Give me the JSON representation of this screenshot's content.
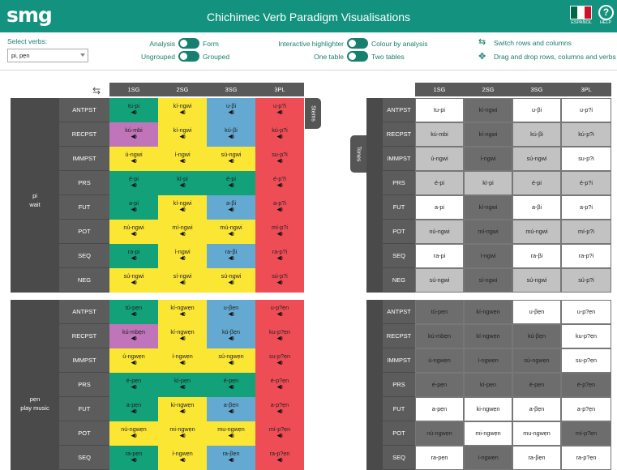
{
  "header": {
    "logo": "smg",
    "title": "Chichimec Verb Paradigm Visualisations",
    "language_label": "ESPAÑOL",
    "help_label": "HELP",
    "flag_colors": [
      "#006847",
      "#ffffff",
      "#ce1126"
    ]
  },
  "controls": {
    "select_label": "Select verbs:",
    "selected_verbs": "pi, pẹn",
    "analysis_label": "Analysis",
    "form_label": "Form",
    "ungrouped_label": "Ungrouped",
    "grouped_label": "Grouped",
    "highlighter_label": "Interactive highlighter",
    "colour_label": "Colour by analysis",
    "one_table_label": "One table",
    "two_tables_label": "Two tables",
    "switch_label": "Switch rows and columns",
    "drag_label": "Drag and drop rows, columns and verbs",
    "switch_icon": "swap-arrows-icon",
    "drag_icon": "move-arrows-icon",
    "toggle_color": "#16806f"
  },
  "tabs": {
    "stems": "Stems",
    "tones": "Tones"
  },
  "columns": [
    "1SG",
    "2SG",
    "3SG",
    "3PL"
  ],
  "verbs": [
    {
      "stem": "pi",
      "gloss": "wait",
      "rows": [
        {
          "label": "ANTPST",
          "forms": [
            "tu-pi",
            "kí-ngwi",
            "u-βi",
            "u-p?i"
          ]
        },
        {
          "label": "RECPST",
          "forms": [
            "kú-mbi",
            "kí-ngwi",
            "kú-βi",
            "kú-p?i"
          ]
        },
        {
          "label": "IMMPST",
          "forms": [
            "ú-ngwi",
            "í-ngwi",
            "sú-ngwi",
            "su-p?i"
          ]
        },
        {
          "label": "PRS",
          "forms": [
            "é-pi",
            "kí-pi",
            "é-pi",
            "é-p?i"
          ]
        },
        {
          "label": "FUT",
          "forms": [
            "a-pi",
            "kí-ngwi",
            "a-βi",
            "a-p?i"
          ]
        },
        {
          "label": "POT",
          "forms": [
            "nú-ngwi",
            "mí-ngwi",
            "mú-ngwi",
            "mí-p?i"
          ]
        },
        {
          "label": "SEQ",
          "forms": [
            "ra-pi",
            "í-ngwi",
            "ra-βi",
            "ra-p?i"
          ]
        },
        {
          "label": "NEG",
          "forms": [
            "sú-ngwi",
            "sí-ngwi",
            "sú-ngwi",
            "sú-p?i"
          ]
        }
      ]
    },
    {
      "stem": "pẹn",
      "gloss": "play music",
      "rows": [
        {
          "label": "ANTPST",
          "forms": [
            "tú-pẹn",
            "kí-ngwẹn",
            "u-βẹn",
            "u-p?ẹn"
          ]
        },
        {
          "label": "RECPST",
          "forms": [
            "kú-mbẹn",
            "kí-ngwẹn",
            "kú-βẹn",
            "ku-p?ẹn"
          ]
        },
        {
          "label": "IMMPST",
          "forms": [
            "ú-ngwẹn",
            "í-ngwẹn",
            "sú-ngwẹn",
            "su-p?ẹn"
          ]
        },
        {
          "label": "PRS",
          "forms": [
            "é-pẹn",
            "kí-pẹn",
            "é-pẹn",
            "é-p?ẹn"
          ]
        },
        {
          "label": "FUT",
          "forms": [
            "a-pẹn",
            "ki-ngwẹn",
            "a-βẹn",
            "a-p?ẹn"
          ]
        },
        {
          "label": "POT",
          "forms": [
            "nú-ngwẹn",
            "mi-ngwẹn",
            "mu-ngwẹn",
            "mí-p?ẹn"
          ]
        },
        {
          "label": "SEQ",
          "forms": [
            "ra-pẹn",
            "í-ngwẹn",
            "ra-βẹn",
            "ra-p?ẹn"
          ]
        }
      ]
    }
  ],
  "left_colors": [
    [
      "green",
      "yellow",
      "blue",
      "red"
    ],
    [
      "purple",
      "yellow",
      "blue",
      "red"
    ],
    [
      "yellow",
      "yellow",
      "yellow",
      "red"
    ],
    [
      "green",
      "green",
      "green",
      "red"
    ],
    [
      "green",
      "yellow",
      "blue",
      "red"
    ],
    [
      "yellow",
      "yellow",
      "yellow",
      "red"
    ],
    [
      "green",
      "yellow",
      "blue",
      "red"
    ],
    [
      "yellow",
      "yellow",
      "yellow",
      "red"
    ],
    [
      "green",
      "yellow",
      "blue",
      "red"
    ],
    [
      "purple",
      "yellow",
      "blue",
      "red"
    ],
    [
      "yellow",
      "yellow",
      "yellow",
      "red"
    ],
    [
      "green",
      "green",
      "green",
      "red"
    ],
    [
      "green",
      "yellow",
      "blue",
      "red"
    ],
    [
      "yellow",
      "yellow",
      "yellow",
      "red"
    ],
    [
      "green",
      "yellow",
      "blue",
      "red"
    ]
  ],
  "right_shades": [
    [
      "white",
      "dark",
      "white",
      "white"
    ],
    [
      "light",
      "dark",
      "light",
      "light"
    ],
    [
      "light",
      "dark",
      "light",
      "white"
    ],
    [
      "light",
      "light",
      "light",
      "light"
    ],
    [
      "white",
      "dark",
      "white",
      "white"
    ],
    [
      "light",
      "dark",
      "light",
      "light"
    ],
    [
      "white",
      "dark",
      "white",
      "white"
    ],
    [
      "light",
      "dark",
      "light",
      "light"
    ],
    [
      "dark",
      "dark",
      "white",
      "white"
    ],
    [
      "dark",
      "dark",
      "dark",
      "white"
    ],
    [
      "dark",
      "dark",
      "dark",
      "white"
    ],
    [
      "dark",
      "dark",
      "dark",
      "dark"
    ],
    [
      "white",
      "white",
      "white",
      "white"
    ],
    [
      "dark",
      "white",
      "white",
      "dark"
    ],
    [
      "white",
      "dark",
      "white",
      "white"
    ]
  ],
  "palette": {
    "green": "#12a179",
    "yellow": "#fbe634",
    "blue": "#63a9d1",
    "red": "#ef4d56",
    "purple": "#c074ba"
  },
  "speaker_icon": "speaker-icon"
}
